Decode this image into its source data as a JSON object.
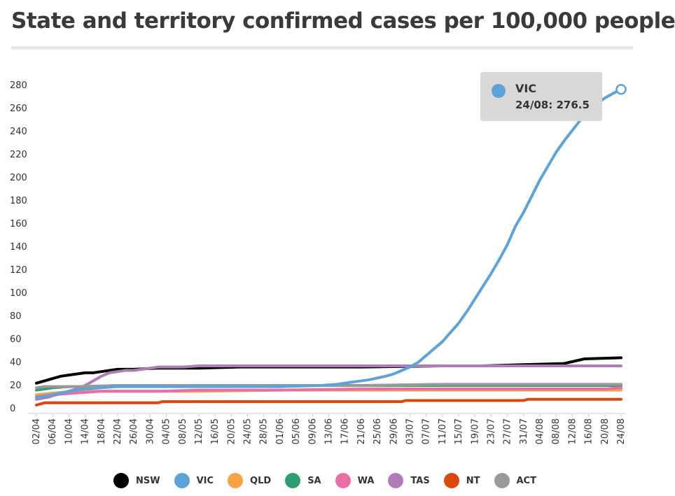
{
  "title": "State and territory confirmed cases per 100,000 people",
  "chart_data": {
    "type": "line",
    "title": "State and territory confirmed cases per 100,000 people",
    "xlabel": "",
    "ylabel": "",
    "ylim": [
      0,
      280
    ],
    "y_ticks": [
      "0",
      "20",
      "40",
      "60",
      "80",
      "100",
      "120",
      "140",
      "160",
      "180",
      "200",
      "220",
      "240",
      "260",
      "280"
    ],
    "x_ticks": [
      "02/04",
      "06/04",
      "10/04",
      "14/04",
      "18/04",
      "22/04",
      "26/04",
      "30/04",
      "04/05",
      "08/05",
      "12/05",
      "16/05",
      "20/05",
      "24/05",
      "28/05",
      "01/06",
      "05/06",
      "09/06",
      "13/06",
      "17/06",
      "21/06",
      "25/06",
      "29/06",
      "03/07",
      "07/07",
      "11/07",
      "15/07",
      "19/07",
      "23/07",
      "27/07",
      "31/07",
      "04/08",
      "08/08",
      "12/08",
      "16/08",
      "20/08",
      "24/08"
    ],
    "x_range_days": [
      0,
      144
    ],
    "legend_position": "bottom",
    "grid": false,
    "series": [
      {
        "name": "NSW",
        "color": "#000000",
        "points": [
          [
            0,
            22
          ],
          [
            2,
            24
          ],
          [
            4,
            26
          ],
          [
            6,
            28
          ],
          [
            8,
            29
          ],
          [
            10,
            30
          ],
          [
            12,
            31
          ],
          [
            14,
            31
          ],
          [
            16,
            32
          ],
          [
            18,
            33
          ],
          [
            20,
            34
          ],
          [
            24,
            34
          ],
          [
            30,
            35
          ],
          [
            40,
            35
          ],
          [
            50,
            36
          ],
          [
            60,
            36
          ],
          [
            80,
            36
          ],
          [
            100,
            37
          ],
          [
            110,
            37
          ],
          [
            120,
            38
          ],
          [
            130,
            39
          ],
          [
            135,
            43
          ],
          [
            144,
            44
          ]
        ]
      },
      {
        "name": "VIC",
        "color": "#5ba3d9",
        "points": [
          [
            0,
            10
          ],
          [
            4,
            12
          ],
          [
            8,
            15
          ],
          [
            12,
            17
          ],
          [
            16,
            18
          ],
          [
            20,
            19
          ],
          [
            30,
            19
          ],
          [
            40,
            19
          ],
          [
            50,
            19
          ],
          [
            60,
            19
          ],
          [
            70,
            20
          ],
          [
            74,
            21
          ],
          [
            78,
            23
          ],
          [
            82,
            25
          ],
          [
            86,
            28
          ],
          [
            88,
            30
          ],
          [
            90,
            33
          ],
          [
            92,
            36
          ],
          [
            94,
            40
          ],
          [
            96,
            46
          ],
          [
            98,
            52
          ],
          [
            100,
            58
          ],
          [
            102,
            66
          ],
          [
            104,
            74
          ],
          [
            106,
            84
          ],
          [
            108,
            95
          ],
          [
            110,
            106
          ],
          [
            112,
            117
          ],
          [
            114,
            129
          ],
          [
            116,
            142
          ],
          [
            117,
            150
          ],
          [
            118,
            158
          ],
          [
            120,
            170
          ],
          [
            122,
            184
          ],
          [
            124,
            198
          ],
          [
            126,
            210
          ],
          [
            128,
            222
          ],
          [
            130,
            232
          ],
          [
            132,
            241
          ],
          [
            134,
            250
          ],
          [
            136,
            258
          ],
          [
            138,
            264
          ],
          [
            140,
            269
          ],
          [
            142,
            273
          ],
          [
            144,
            276.5
          ]
        ]
      },
      {
        "name": "QLD",
        "color": "#f7a244",
        "points": [
          [
            0,
            12
          ],
          [
            3,
            13
          ],
          [
            6,
            14
          ],
          [
            10,
            15
          ],
          [
            20,
            15
          ],
          [
            40,
            15
          ],
          [
            60,
            16
          ],
          [
            80,
            16
          ],
          [
            100,
            16
          ],
          [
            120,
            16
          ],
          [
            144,
            16
          ]
        ]
      },
      {
        "name": "SA",
        "color": "#2e9e72",
        "points": [
          [
            0,
            16
          ],
          [
            2,
            17
          ],
          [
            4,
            18
          ],
          [
            8,
            19
          ],
          [
            14,
            19
          ],
          [
            20,
            20
          ],
          [
            30,
            20
          ],
          [
            60,
            20
          ],
          [
            90,
            20
          ],
          [
            120,
            20
          ],
          [
            144,
            20
          ]
        ]
      },
      {
        "name": "WA",
        "color": "#e96ea8",
        "points": [
          [
            0,
            10
          ],
          [
            4,
            12
          ],
          [
            8,
            13
          ],
          [
            12,
            14
          ],
          [
            16,
            15
          ],
          [
            20,
            15
          ],
          [
            30,
            15
          ],
          [
            40,
            16
          ],
          [
            60,
            16
          ],
          [
            80,
            17
          ],
          [
            100,
            17
          ],
          [
            120,
            17
          ],
          [
            140,
            17
          ],
          [
            144,
            18
          ]
        ]
      },
      {
        "name": "TAS",
        "color": "#b07cb7",
        "points": [
          [
            0,
            8
          ],
          [
            3,
            10
          ],
          [
            6,
            13
          ],
          [
            9,
            16
          ],
          [
            12,
            20
          ],
          [
            14,
            24
          ],
          [
            16,
            28
          ],
          [
            18,
            31
          ],
          [
            20,
            32
          ],
          [
            22,
            33
          ],
          [
            24,
            33
          ],
          [
            26,
            34
          ],
          [
            28,
            35
          ],
          [
            30,
            36
          ],
          [
            32,
            36
          ],
          [
            36,
            36
          ],
          [
            40,
            37
          ],
          [
            50,
            37
          ],
          [
            60,
            37
          ],
          [
            80,
            37
          ],
          [
            100,
            37
          ],
          [
            120,
            37
          ],
          [
            144,
            37
          ]
        ]
      },
      {
        "name": "NT",
        "color": "#d9480f",
        "points": [
          [
            0,
            3
          ],
          [
            1,
            4
          ],
          [
            2,
            5
          ],
          [
            10,
            5
          ],
          [
            20,
            5
          ],
          [
            30,
            5
          ],
          [
            31,
            6
          ],
          [
            50,
            6
          ],
          [
            70,
            6
          ],
          [
            90,
            6
          ],
          [
            91,
            7
          ],
          [
            110,
            7
          ],
          [
            120,
            7
          ],
          [
            121,
            8
          ],
          [
            144,
            8
          ]
        ]
      },
      {
        "name": "ACT",
        "color": "#999999",
        "points": [
          [
            0,
            18
          ],
          [
            2,
            19
          ],
          [
            4,
            19
          ],
          [
            10,
            19
          ],
          [
            20,
            20
          ],
          [
            40,
            20
          ],
          [
            60,
            20
          ],
          [
            80,
            20
          ],
          [
            100,
            21
          ],
          [
            120,
            21
          ],
          [
            144,
            21
          ]
        ]
      }
    ],
    "tooltip": {
      "series": "VIC",
      "label": "24/08: 276.5",
      "color": "#5ba3d9"
    }
  }
}
